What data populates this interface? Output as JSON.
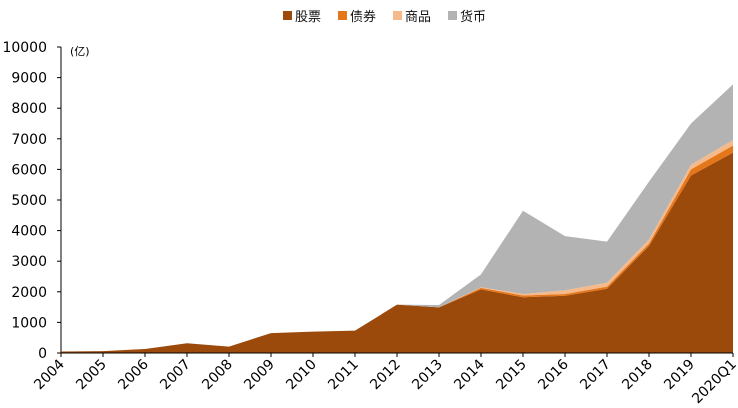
{
  "chart_data": {
    "type": "area",
    "stacked": true,
    "unit_label": "(亿)",
    "categories": [
      "2004",
      "2005",
      "2006",
      "2007",
      "2008",
      "2009",
      "2010",
      "2011",
      "2012",
      "2013",
      "2014",
      "2015",
      "2016",
      "2017",
      "2018",
      "2019",
      "2020Q1"
    ],
    "ylim": [
      0,
      10000
    ],
    "yticks": [
      0,
      1000,
      2000,
      3000,
      4000,
      5000,
      6000,
      7000,
      8000,
      9000,
      10000
    ],
    "legend_position": "top-center",
    "series": [
      {
        "name": "股票",
        "color": "#9b4a0c",
        "values": [
          50,
          60,
          130,
          320,
          210,
          650,
          700,
          730,
          1580,
          1490,
          2080,
          1820,
          1870,
          2100,
          3500,
          5800,
          6550
        ]
      },
      {
        "name": "债券",
        "color": "#e6761a",
        "values": [
          0,
          0,
          0,
          0,
          0,
          0,
          0,
          0,
          0,
          0,
          50,
          60,
          60,
          70,
          80,
          200,
          230
        ]
      },
      {
        "name": "商品",
        "color": "#f5b98a",
        "values": [
          0,
          0,
          0,
          0,
          0,
          0,
          0,
          0,
          0,
          0,
          20,
          50,
          120,
          130,
          130,
          150,
          180
        ]
      },
      {
        "name": "货币",
        "color": "#b3b3b3",
        "values": [
          0,
          0,
          0,
          0,
          0,
          0,
          0,
          0,
          0,
          80,
          420,
          2720,
          1770,
          1340,
          1890,
          1350,
          1820
        ]
      }
    ]
  }
}
